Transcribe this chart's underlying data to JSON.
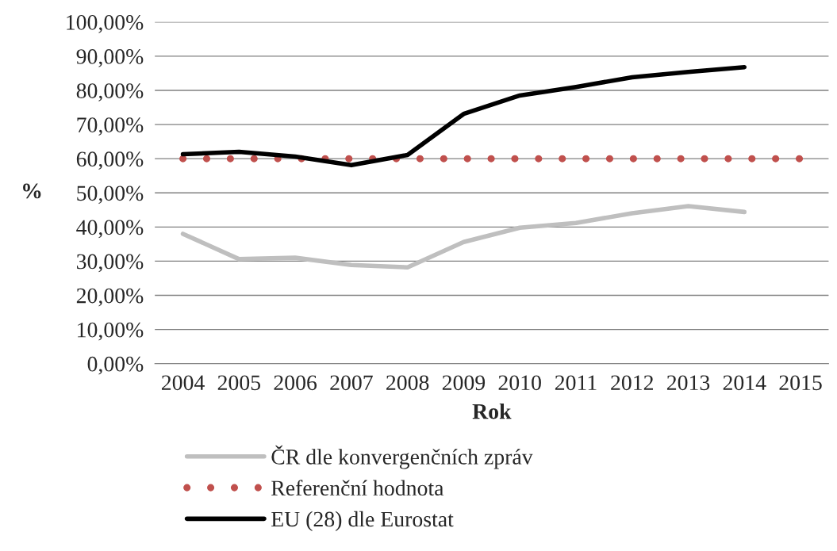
{
  "chart_data": {
    "type": "line",
    "categories": [
      "2004",
      "2005",
      "2006",
      "2007",
      "2008",
      "2009",
      "2010",
      "2011",
      "2012",
      "2013",
      "2014",
      "2015"
    ],
    "series": [
      {
        "name": "ČR dle konvergenčních zpráv",
        "color": "#bfbfbf",
        "line_style": "solid",
        "values": [
          38.0,
          30.6,
          31.0,
          28.9,
          28.2,
          35.6,
          39.8,
          41.2,
          44.0,
          46.1,
          44.4,
          null
        ]
      },
      {
        "name": "Referenční hodnota",
        "color": "#c0504d",
        "line_style": "dotted",
        "values": [
          60,
          60,
          60,
          60,
          60,
          60,
          60,
          60,
          60,
          60,
          60,
          60
        ]
      },
      {
        "name": "EU (28) dle Eurostat",
        "color": "#000000",
        "line_style": "solid",
        "values": [
          61.3,
          62.0,
          60.6,
          58.1,
          61.1,
          73.1,
          78.5,
          81.0,
          83.8,
          85.4,
          86.8,
          null
        ]
      }
    ],
    "xlabel": "Rok",
    "ylabel": "%",
    "ylim": [
      0,
      100
    ],
    "yticks": [
      {
        "value": 0,
        "label": "0,00%"
      },
      {
        "value": 10,
        "label": "10,00%"
      },
      {
        "value": 20,
        "label": "20,00%"
      },
      {
        "value": 30,
        "label": "30,00%"
      },
      {
        "value": 40,
        "label": "40,00%"
      },
      {
        "value": 50,
        "label": "50,00%"
      },
      {
        "value": 60,
        "label": "60,00%"
      },
      {
        "value": 70,
        "label": "70,00%"
      },
      {
        "value": 80,
        "label": "80,00%"
      },
      {
        "value": 90,
        "label": "90,00%"
      },
      {
        "value": 100,
        "label": "100,00%"
      }
    ],
    "grid": "y",
    "legend": "bottom",
    "marker": "none"
  }
}
